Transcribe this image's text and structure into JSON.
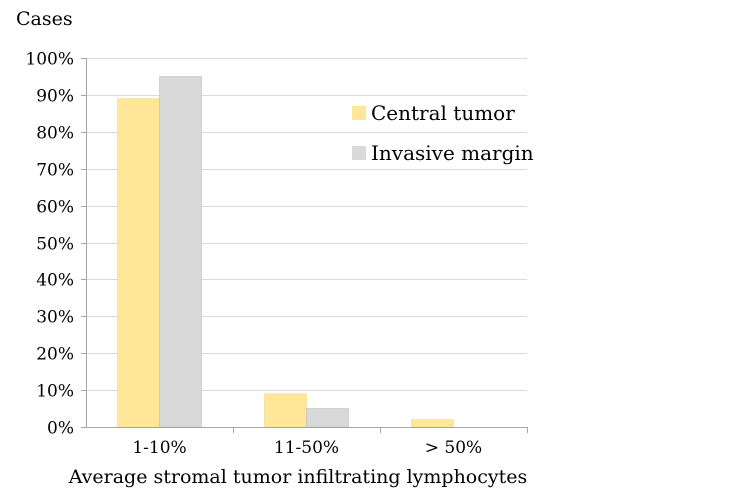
{
  "chart_data": {
    "type": "bar",
    "title": "",
    "ylabel": "Cases",
    "xlabel": "Average stromal tumor infiltrating lymphocytes",
    "categories": [
      "1-10%",
      "11-50%",
      "> 50%"
    ],
    "series": [
      {
        "name": "Central tumor",
        "values": [
          89,
          9,
          2
        ],
        "color": "#FFE699"
      },
      {
        "name": "Invasive margin",
        "values": [
          95,
          5,
          0
        ],
        "color": "#D9D9D9"
      }
    ],
    "ylim": [
      0,
      100
    ],
    "yticks": [
      0,
      10,
      20,
      30,
      40,
      50,
      60,
      70,
      80,
      90,
      100
    ],
    "ytick_suffix": "%",
    "grid": true,
    "legend_position": "top-right"
  }
}
